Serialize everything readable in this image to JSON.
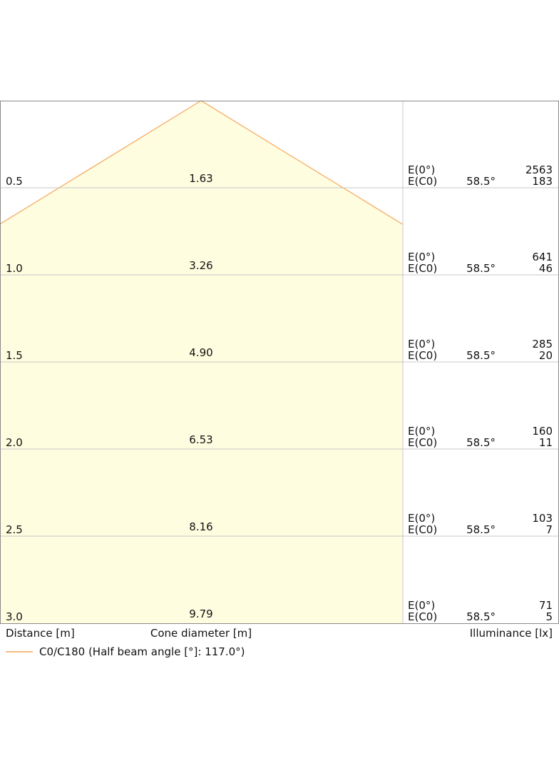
{
  "chart_data": {
    "type": "cone-diagram",
    "title": "",
    "row_values": [
      {
        "distance": "0.5",
        "cone_diameter": "1.63",
        "e0_label": "E(0°)",
        "ec0_label": "E(C0)",
        "angle": "58.5°",
        "e0": "2563",
        "ec0": "183"
      },
      {
        "distance": "1.0",
        "cone_diameter": "3.26",
        "e0_label": "E(0°)",
        "ec0_label": "E(C0)",
        "angle": "58.5°",
        "e0": "641",
        "ec0": "46"
      },
      {
        "distance": "1.5",
        "cone_diameter": "4.90",
        "e0_label": "E(0°)",
        "ec0_label": "E(C0)",
        "angle": "58.5°",
        "e0": "285",
        "ec0": "20"
      },
      {
        "distance": "2.0",
        "cone_diameter": "6.53",
        "e0_label": "E(0°)",
        "ec0_label": "E(C0)",
        "angle": "58.5°",
        "e0": "160",
        "ec0": "11"
      },
      {
        "distance": "2.5",
        "cone_diameter": "8.16",
        "e0_label": "E(0°)",
        "ec0_label": "E(C0)",
        "angle": "58.5°",
        "e0": "103",
        "ec0": "7"
      },
      {
        "distance": "3.0",
        "cone_diameter": "9.79",
        "e0_label": "E(0°)",
        "ec0_label": "E(C0)",
        "angle": "58.5°",
        "e0": "71",
        "ec0": "5"
      }
    ],
    "distance_axis_label": "Distance [m]",
    "cone_axis_label": "Cone diameter [m]",
    "illuminance_axis_label": "Illuminance [lx]",
    "half_angle_deg": 58.5,
    "max_distance_m": 3.0,
    "legend": {
      "label": "C0/C180 (Half beam angle [°]: 117.0°)",
      "color": "#f5a65b"
    },
    "colors": {
      "cone_fill": "#fefde0",
      "cone_stroke": "#f5a65b",
      "grid": "#c8c8c8",
      "frame": "#8a8a8a"
    }
  }
}
